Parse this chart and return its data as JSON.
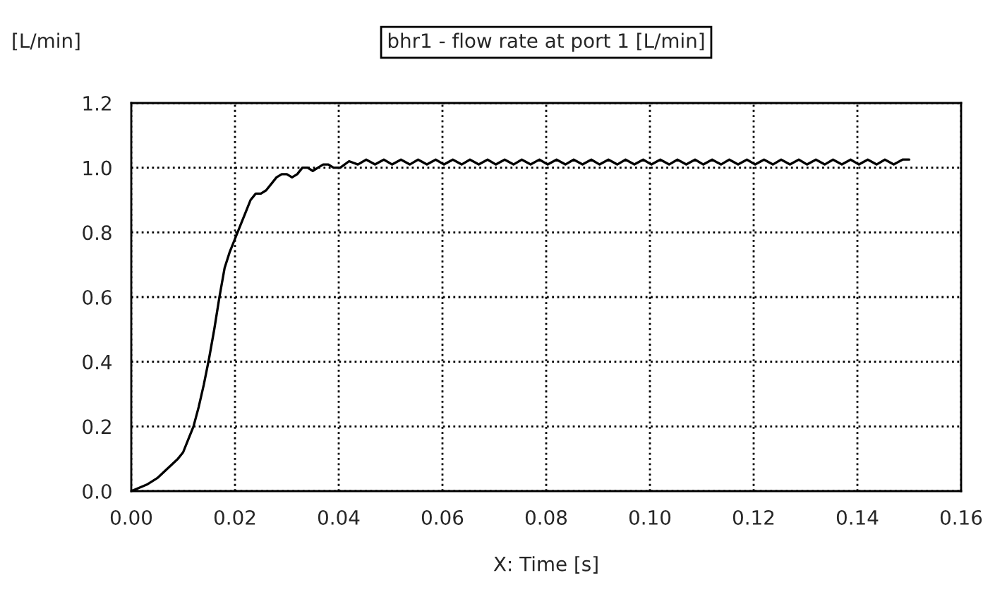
{
  "chart_data": {
    "type": "line",
    "title": "bhr1 - flow rate at port 1 [L/min]",
    "xlabel": "X: Time [s]",
    "ylabel": "[L/min]",
    "series": [
      {
        "color": "#000000",
        "x": [
          0.0,
          0.003,
          0.005,
          0.007,
          0.009,
          0.01,
          0.011,
          0.012,
          0.013,
          0.014,
          0.015,
          0.016,
          0.017,
          0.018,
          0.019,
          0.02,
          0.021,
          0.022,
          0.023,
          0.024,
          0.025,
          0.026,
          0.027,
          0.028,
          0.029,
          0.03,
          0.031,
          0.032,
          0.033,
          0.034,
          0.035,
          0.036,
          0.037,
          0.038,
          0.039,
          0.0403,
          0.042,
          0.0437,
          0.0453,
          0.047,
          0.0487,
          0.0503,
          0.052,
          0.0537,
          0.0553,
          0.057,
          0.0587,
          0.0603,
          0.062,
          0.0637,
          0.0653,
          0.067,
          0.0687,
          0.0703,
          0.072,
          0.0737,
          0.0753,
          0.077,
          0.0787,
          0.0803,
          0.082,
          0.0837,
          0.0853,
          0.087,
          0.0887,
          0.0903,
          0.092,
          0.0937,
          0.0953,
          0.097,
          0.0987,
          0.1003,
          0.102,
          0.1037,
          0.1053,
          0.107,
          0.1087,
          0.1103,
          0.112,
          0.1137,
          0.1153,
          0.117,
          0.1187,
          0.1203,
          0.122,
          0.1237,
          0.1253,
          0.127,
          0.1287,
          0.1303,
          0.132,
          0.1337,
          0.1353,
          0.137,
          0.1387,
          0.1403,
          0.142,
          0.1437,
          0.1453,
          0.147,
          0.1487,
          0.15
        ],
        "values": [
          0.0,
          0.02,
          0.04,
          0.07,
          0.1,
          0.12,
          0.16,
          0.2,
          0.26,
          0.33,
          0.41,
          0.5,
          0.6,
          0.69,
          0.74,
          0.78,
          0.82,
          0.86,
          0.9,
          0.92,
          0.92,
          0.93,
          0.95,
          0.97,
          0.98,
          0.98,
          0.97,
          0.98,
          1.0,
          1.0,
          0.99,
          1.0,
          1.01,
          1.01,
          1.0,
          1.0,
          1.02,
          1.01,
          1.025,
          1.01,
          1.025,
          1.01,
          1.025,
          1.01,
          1.025,
          1.01,
          1.025,
          1.01,
          1.025,
          1.01,
          1.025,
          1.01,
          1.025,
          1.01,
          1.025,
          1.01,
          1.025,
          1.01,
          1.025,
          1.01,
          1.025,
          1.01,
          1.025,
          1.01,
          1.025,
          1.01,
          1.025,
          1.01,
          1.025,
          1.01,
          1.025,
          1.01,
          1.025,
          1.01,
          1.025,
          1.01,
          1.025,
          1.01,
          1.025,
          1.01,
          1.025,
          1.01,
          1.025,
          1.01,
          1.025,
          1.01,
          1.025,
          1.01,
          1.025,
          1.01,
          1.025,
          1.01,
          1.025,
          1.01,
          1.025,
          1.01,
          1.025,
          1.01,
          1.025,
          1.01,
          1.025,
          1.025
        ]
      }
    ],
    "xlim": [
      0.0,
      0.16
    ],
    "ylim": [
      0.0,
      1.2
    ],
    "xticks": [
      {
        "value": 0.0,
        "label": "0.00"
      },
      {
        "value": 0.02,
        "label": "0.02"
      },
      {
        "value": 0.04,
        "label": "0.04"
      },
      {
        "value": 0.06,
        "label": "0.06"
      },
      {
        "value": 0.08,
        "label": "0.08"
      },
      {
        "value": 0.1,
        "label": "0.10"
      },
      {
        "value": 0.12,
        "label": "0.12"
      },
      {
        "value": 0.14,
        "label": "0.14"
      },
      {
        "value": 0.16,
        "label": "0.16"
      }
    ],
    "yticks": [
      {
        "value": 0.0,
        "label": "0.0"
      },
      {
        "value": 0.2,
        "label": "0.2"
      },
      {
        "value": 0.4,
        "label": "0.4"
      },
      {
        "value": 0.6,
        "label": "0.6"
      },
      {
        "value": 0.8,
        "label": "0.8"
      },
      {
        "value": 1.0,
        "label": "1.0"
      },
      {
        "value": 1.2,
        "label": "1.2"
      }
    ],
    "grid": true,
    "marker": "none",
    "line_style": "solid"
  }
}
